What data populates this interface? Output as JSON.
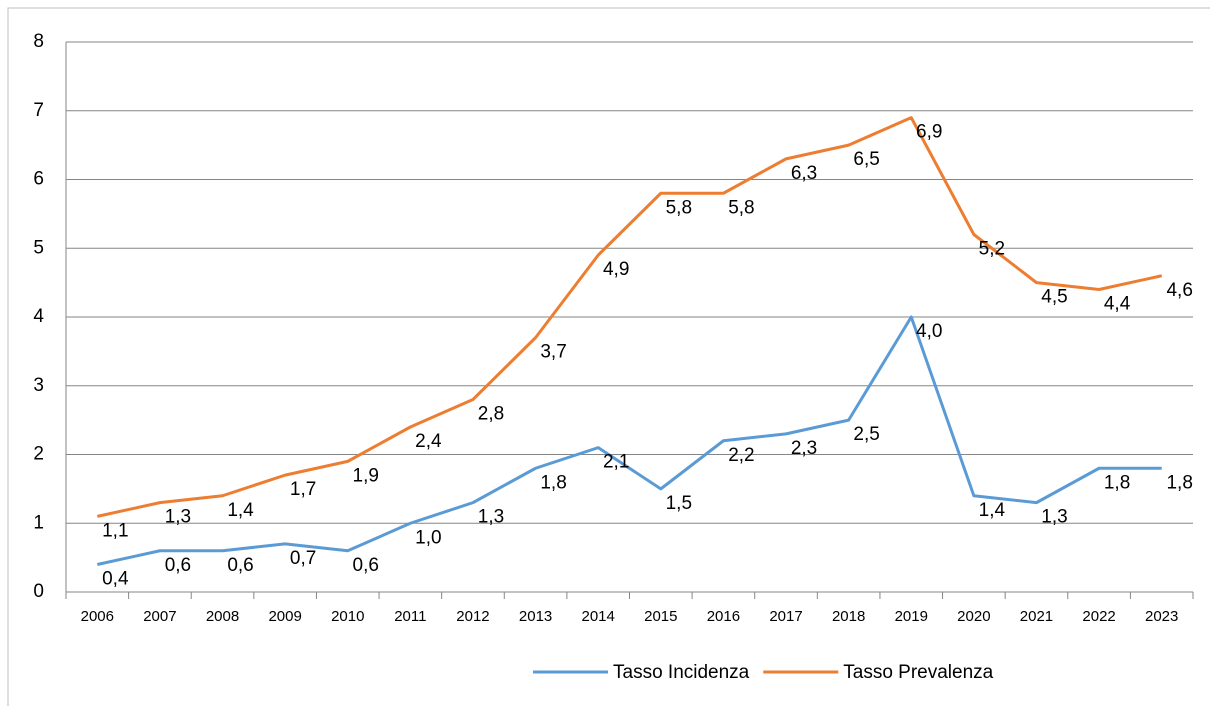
{
  "chart_data": {
    "type": "line",
    "categories": [
      "2006",
      "2007",
      "2008",
      "2009",
      "2010",
      "2011",
      "2012",
      "2013",
      "2014",
      "2015",
      "2016",
      "2017",
      "2018",
      "2019",
      "2020",
      "2021",
      "2022",
      "2023"
    ],
    "series": [
      {
        "name": "Tasso Incidenza",
        "color": "#5b9bd5",
        "values": [
          0.4,
          0.6,
          0.6,
          0.7,
          0.6,
          1.0,
          1.3,
          1.8,
          2.1,
          1.5,
          2.2,
          2.3,
          2.5,
          4.0,
          1.4,
          1.3,
          1.8,
          1.8
        ],
        "value_labels": [
          "0,4",
          "0,6",
          "0,6",
          "0,7",
          "0,6",
          "1,0",
          "1,3",
          "1,8",
          "2,1",
          "1,5",
          "2,2",
          "2,3",
          "2,5",
          "4,0",
          "1,4",
          "1,3",
          "1,8",
          "1,8"
        ]
      },
      {
        "name": "Tasso Prevalenza",
        "color": "#ed7d31",
        "values": [
          1.1,
          1.3,
          1.4,
          1.7,
          1.9,
          2.4,
          2.8,
          3.7,
          4.9,
          5.8,
          5.8,
          6.3,
          6.5,
          6.9,
          5.2,
          4.5,
          4.4,
          4.6
        ],
        "value_labels": [
          "1,1",
          "1,3",
          "1,4",
          "1,7",
          "1,9",
          "2,4",
          "2,8",
          "3,7",
          "4,9",
          "5,8",
          "5,8",
          "6,3",
          "6,5",
          "6,9",
          "5,2",
          "4,5",
          "4,4",
          "4,6"
        ]
      }
    ],
    "ylim": [
      0,
      8
    ],
    "yticks": [
      0,
      1,
      2,
      3,
      4,
      5,
      6,
      7,
      8
    ],
    "grid": true,
    "legend": "bottom"
  }
}
